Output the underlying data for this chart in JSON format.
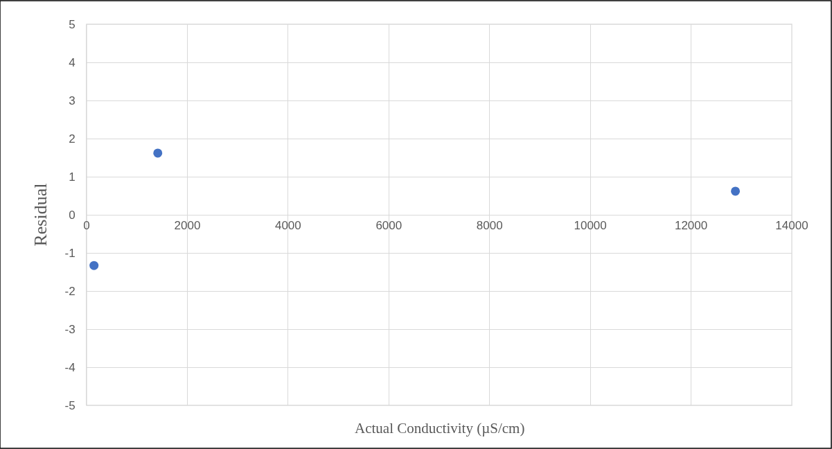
{
  "chart_data": {
    "type": "scatter",
    "xlabel": "Actual Conductivity (µS/cm)",
    "ylabel": "Residual",
    "x": [
      147,
      1413,
      12880
    ],
    "series": [
      {
        "color": "#4472c4",
        "values": [
          -1.33,
          1.62,
          0.62
        ]
      }
    ],
    "xlim": [
      0,
      14000
    ],
    "xticks": [
      0,
      2000,
      4000,
      6000,
      8000,
      10000,
      12000,
      14000
    ],
    "ylim": [
      -5,
      5
    ],
    "yticks": [
      -5,
      -4,
      -3,
      -2,
      -1,
      0,
      1,
      2,
      3,
      4,
      5
    ],
    "grid": true,
    "marker": "circle"
  }
}
